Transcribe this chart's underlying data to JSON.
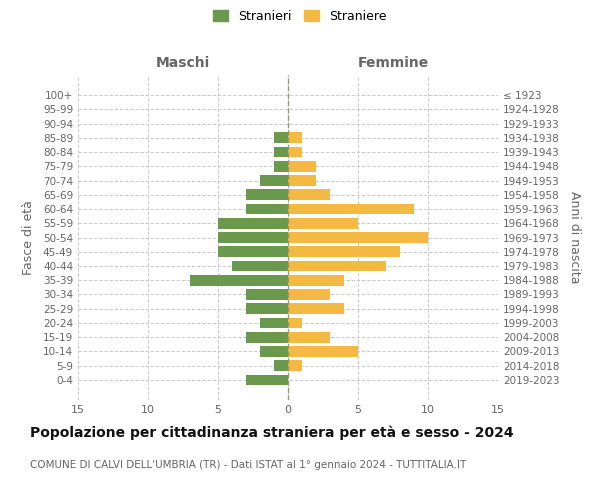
{
  "age_groups": [
    "100+",
    "95-99",
    "90-94",
    "85-89",
    "80-84",
    "75-79",
    "70-74",
    "65-69",
    "60-64",
    "55-59",
    "50-54",
    "45-49",
    "40-44",
    "35-39",
    "30-34",
    "25-29",
    "20-24",
    "15-19",
    "10-14",
    "5-9",
    "0-4"
  ],
  "birth_years": [
    "≤ 1923",
    "1924-1928",
    "1929-1933",
    "1934-1938",
    "1939-1943",
    "1944-1948",
    "1949-1953",
    "1954-1958",
    "1959-1963",
    "1964-1968",
    "1969-1973",
    "1974-1978",
    "1979-1983",
    "1984-1988",
    "1989-1993",
    "1994-1998",
    "1999-2003",
    "2004-2008",
    "2009-2013",
    "2014-2018",
    "2019-2023"
  ],
  "males": [
    0,
    0,
    0,
    1,
    1,
    1,
    2,
    3,
    3,
    5,
    5,
    5,
    4,
    7,
    3,
    3,
    2,
    3,
    2,
    1,
    3
  ],
  "females": [
    0,
    0,
    0,
    1,
    1,
    2,
    2,
    3,
    9,
    5,
    10,
    8,
    7,
    4,
    3,
    4,
    1,
    3,
    5,
    1,
    0
  ],
  "male_color": "#6a994e",
  "female_color": "#f4b942",
  "background_color": "#ffffff",
  "grid_color": "#cccccc",
  "title": "Popolazione per cittadinanza straniera per età e sesso - 2024",
  "subtitle": "COMUNE DI CALVI DELL'UMBRIA (TR) - Dati ISTAT al 1° gennaio 2024 - TUTTITALIA.IT",
  "xlabel_left": "Maschi",
  "xlabel_right": "Femmine",
  "ylabel_left": "Fasce di età",
  "ylabel_right": "Anni di nascita",
  "legend_male": "Stranieri",
  "legend_female": "Straniere",
  "xlim": 15,
  "title_fontsize": 10,
  "subtitle_fontsize": 7.5
}
